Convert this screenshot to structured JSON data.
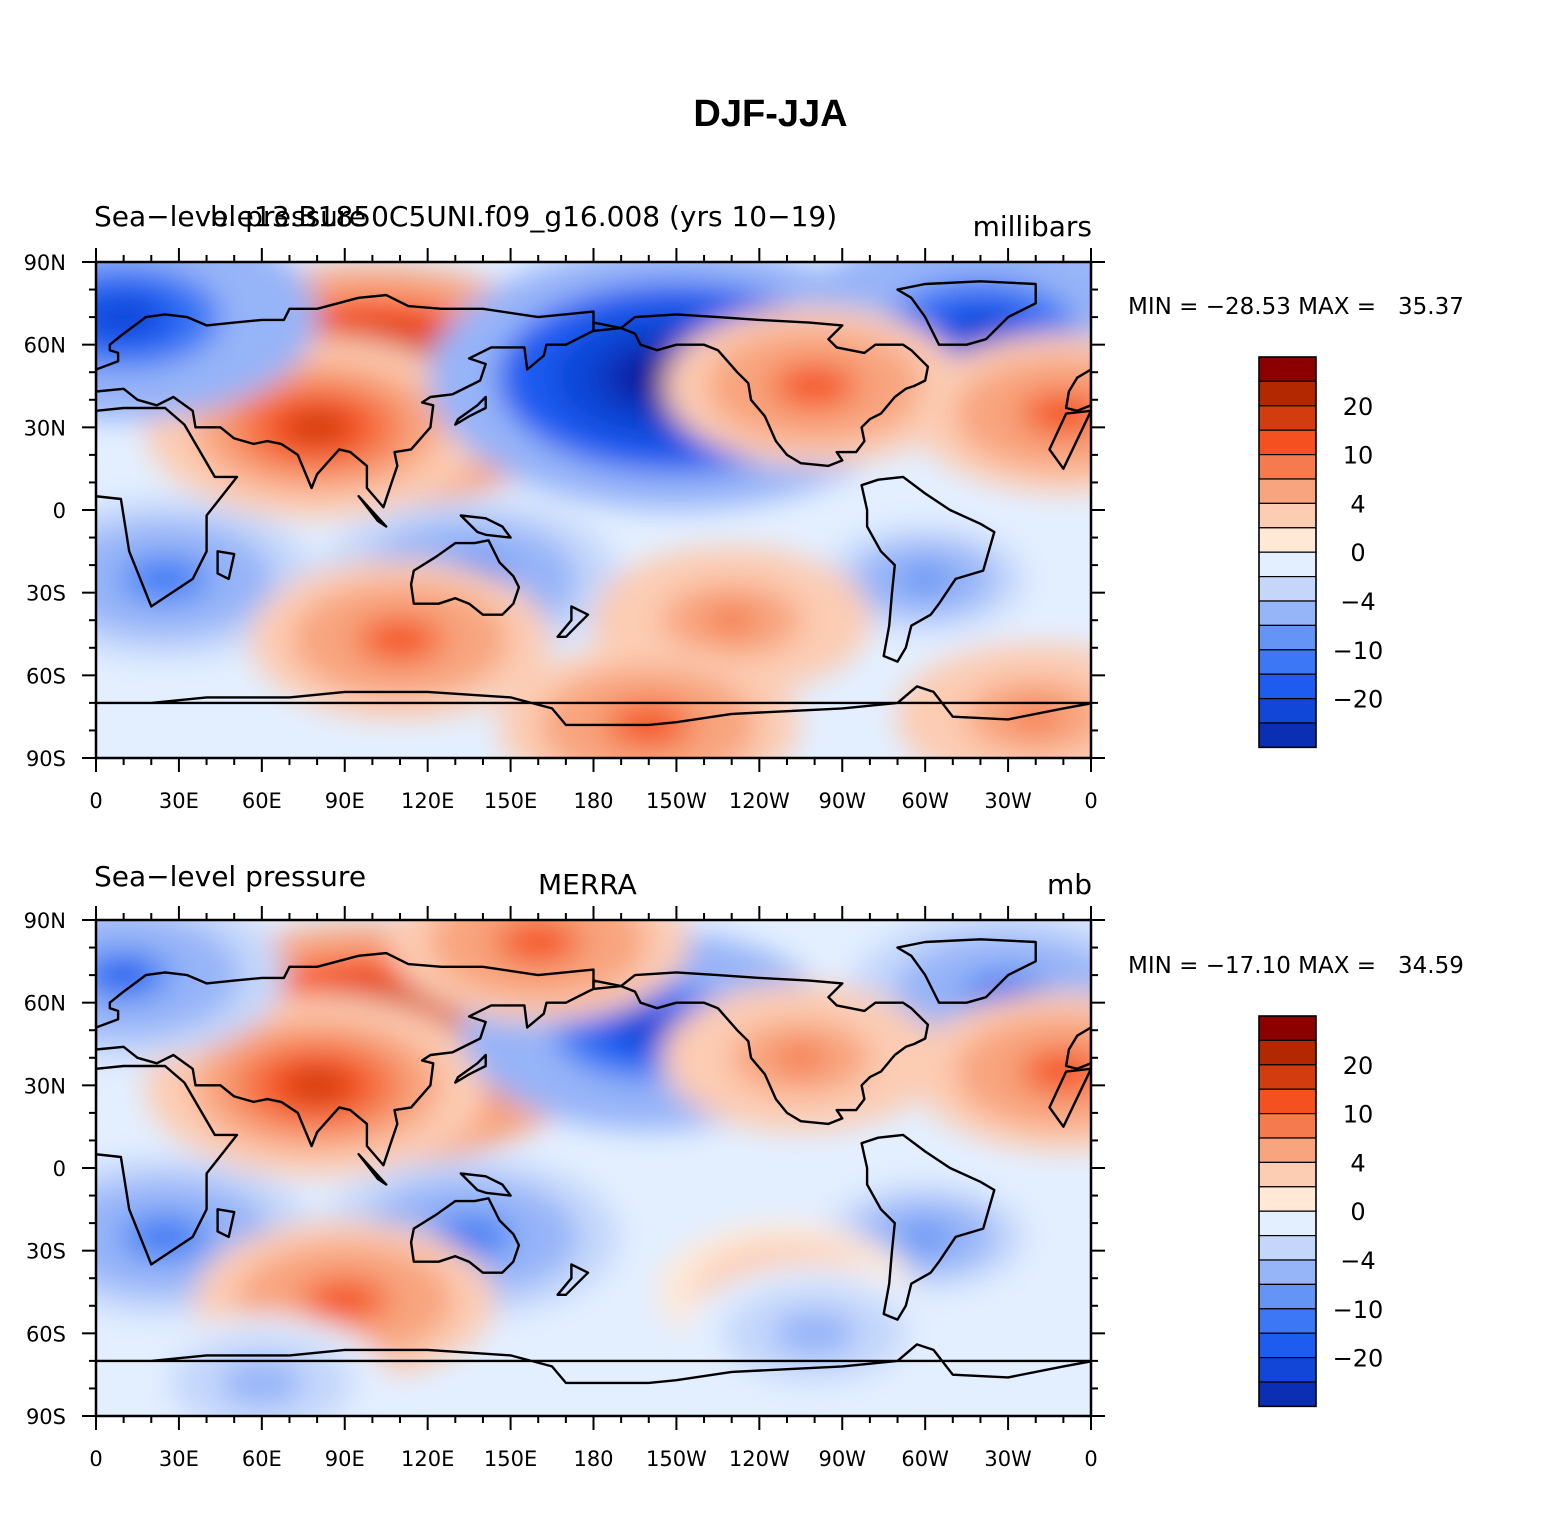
{
  "title": "DJF-JJA",
  "palette": [
    "#00008c",
    "#0a2fb4",
    "#1047d8",
    "#1e5cf0",
    "#3c78f5",
    "#6495f5",
    "#96b4f8",
    "#c4d7fb",
    "#e3efff",
    "#ffe8d6",
    "#fcccb3",
    "#f8a47e",
    "#f57a4e",
    "#f5501f",
    "#d23c0f",
    "#b42800",
    "#8c0000"
  ],
  "colorbar_labels": [
    "20",
    "10",
    "4",
    "0",
    "−4",
    "−10",
    "−20"
  ],
  "x_ticks": [
    "0",
    "30E",
    "60E",
    "90E",
    "120E",
    "150E",
    "180",
    "150W",
    "120W",
    "90W",
    "60W",
    "30W",
    "0"
  ],
  "y_ticks": [
    "90N",
    "60N",
    "30N",
    "0",
    "30S",
    "60S",
    "90S"
  ],
  "panels": [
    {
      "left_label": "Sea−level pressure",
      "center_label": "b.e13.B1850C5UNI.f09_g16.008 (yrs 10−19)",
      "right_label": "millibars",
      "minmax": "MIN = −28.53 MAX =   35.37",
      "min": -28.53,
      "max": 35.37
    },
    {
      "left_label": "Sea−level pressure",
      "center_label": "MERRA",
      "right_label": "mb",
      "minmax": "MIN = −17.10 MAX =   34.59",
      "min": -17.1,
      "max": 34.59
    }
  ],
  "chart_data": {
    "type": "heatmap",
    "title": "DJF-JJA",
    "x_axis": [
      "0",
      "30E",
      "60E",
      "90E",
      "120E",
      "150E",
      "180",
      "150W",
      "120W",
      "90W",
      "60W",
      "30W",
      "0"
    ],
    "y_axis": [
      "90N",
      "60N",
      "30N",
      "0",
      "30S",
      "60S",
      "90S"
    ],
    "levels": [
      -24,
      -20,
      -16,
      -12,
      -10,
      -8,
      -4,
      -2,
      0,
      2,
      4,
      8,
      10,
      12,
      16,
      20,
      24
    ],
    "panels": [
      {
        "name": "b.e13.B1850C5UNI.f09_g16.008 (yrs 10−19)",
        "field": "Sea−level pressure",
        "units": "millibars",
        "min": -28.53,
        "max": 35.37,
        "features": [
          {
            "lon": 100,
            "lat": 45,
            "value": 24
          },
          {
            "lon": 80,
            "lat": 30,
            "value": 14
          },
          {
            "lon": 210,
            "lat": 48,
            "value": -28
          },
          {
            "lon": 320,
            "lat": 65,
            "value": -18
          },
          {
            "lon": 10,
            "lat": 70,
            "value": -18
          },
          {
            "lon": 260,
            "lat": 45,
            "value": 10
          },
          {
            "lon": 350,
            "lat": 35,
            "value": 10
          },
          {
            "lon": 25,
            "lat": -25,
            "value": -10
          },
          {
            "lon": 135,
            "lat": -25,
            "value": -10
          },
          {
            "lon": 300,
            "lat": -25,
            "value": -8
          },
          {
            "lon": 110,
            "lat": -47,
            "value": 10
          },
          {
            "lon": 230,
            "lat": -40,
            "value": 8
          },
          {
            "lon": 200,
            "lat": -78,
            "value": 10
          },
          {
            "lon": 340,
            "lat": -75,
            "value": 8
          }
        ]
      },
      {
        "name": "MERRA",
        "field": "Sea−level pressure",
        "units": "mb",
        "min": -17.1,
        "max": 34.59,
        "features": [
          {
            "lon": 100,
            "lat": 45,
            "value": 24
          },
          {
            "lon": 80,
            "lat": 30,
            "value": 14
          },
          {
            "lon": 200,
            "lat": 50,
            "value": -17
          },
          {
            "lon": 330,
            "lat": 62,
            "value": -12
          },
          {
            "lon": 10,
            "lat": 70,
            "value": -12
          },
          {
            "lon": 160,
            "lat": 82,
            "value": 10
          },
          {
            "lon": 255,
            "lat": 40,
            "value": 8
          },
          {
            "lon": 350,
            "lat": 35,
            "value": 10
          },
          {
            "lon": 25,
            "lat": -25,
            "value": -10
          },
          {
            "lon": 135,
            "lat": -25,
            "value": -10
          },
          {
            "lon": 300,
            "lat": -25,
            "value": -8
          },
          {
            "lon": 90,
            "lat": -48,
            "value": 10
          },
          {
            "lon": 250,
            "lat": -45,
            "value": 6
          },
          {
            "lon": 260,
            "lat": -60,
            "value": -6
          },
          {
            "lon": 60,
            "lat": -78,
            "value": -6
          }
        ]
      }
    ]
  }
}
